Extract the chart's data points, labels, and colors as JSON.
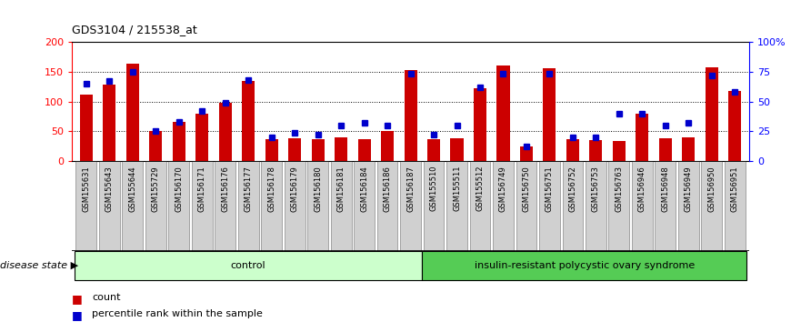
{
  "title": "GDS3104 / 215538_at",
  "samples": [
    "GSM155631",
    "GSM155643",
    "GSM155644",
    "GSM155729",
    "GSM156170",
    "GSM156171",
    "GSM156176",
    "GSM156177",
    "GSM156178",
    "GSM156179",
    "GSM156180",
    "GSM156181",
    "GSM156184",
    "GSM156186",
    "GSM156187",
    "GSM155510",
    "GSM155511",
    "GSM155512",
    "GSM156749",
    "GSM156750",
    "GSM156751",
    "GSM156752",
    "GSM156753",
    "GSM156763",
    "GSM156946",
    "GSM156948",
    "GSM156949",
    "GSM156950",
    "GSM156951"
  ],
  "counts": [
    112,
    128,
    163,
    50,
    65,
    80,
    98,
    135,
    37,
    38,
    37,
    40,
    37,
    50,
    153,
    37,
    38,
    122,
    160,
    25,
    155,
    37,
    35,
    33,
    80,
    38,
    40,
    157,
    117
  ],
  "percentiles": [
    65,
    67,
    75,
    25,
    33,
    42,
    49,
    68,
    20,
    24,
    22,
    30,
    32,
    30,
    73,
    22,
    30,
    62,
    73,
    12,
    73,
    20,
    20,
    40,
    40,
    30,
    32,
    72,
    58
  ],
  "n_control": 15,
  "bar_color": "#cc0000",
  "percentile_color": "#0000cc",
  "control_bg": "#ccffcc",
  "pcos_bg": "#55cc55",
  "plot_bg": "#ffffff",
  "xtick_bg": "#d0d0d0",
  "ylim_left": [
    0,
    200
  ],
  "ylim_right": [
    0,
    100
  ],
  "yticks_left": [
    0,
    50,
    100,
    150,
    200
  ],
  "yticks_right": [
    0,
    25,
    50,
    75,
    100
  ],
  "ytick_right_labels": [
    "0",
    "25",
    "50",
    "75",
    "100%"
  ],
  "hgrid_vals": [
    50,
    100,
    150
  ],
  "group_labels": [
    "control",
    "insulin-resistant polycystic ovary syndrome"
  ],
  "disease_state_label": "disease state ▶",
  "legend_count_label": "count",
  "legend_pct_label": "percentile rank within the sample"
}
